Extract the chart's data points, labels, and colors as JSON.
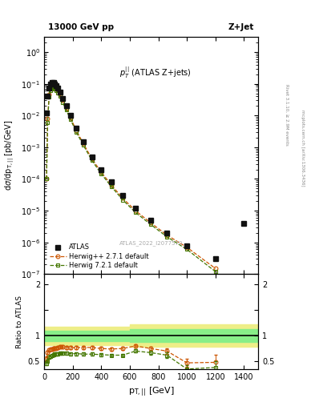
{
  "title_left": "13000 GeV pp",
  "title_right": "Z+Jet",
  "annotation": "$p_{T}^{||}$ (ATLAS Z+jets)",
  "watermark": "ATLAS_2022_I2077570",
  "right_label1": "Rivet 3.1.10, ≥ 2.9M events",
  "right_label2": "mcplots.cern.ch [arXiv:1306.3436]",
  "ylim_main": [
    1e-07,
    3.0
  ],
  "ylim_ratio": [
    0.35,
    2.2
  ],
  "xlim": [
    0,
    1500
  ],
  "atlas_x": [
    17,
    25,
    35,
    45,
    55,
    65,
    75,
    85,
    95,
    110,
    130,
    155,
    185,
    225,
    275,
    335,
    400,
    470,
    550,
    640,
    745,
    860,
    1000,
    1200,
    1400
  ],
  "atlas_y": [
    0.012,
    0.04,
    0.075,
    0.1,
    0.11,
    0.11,
    0.1,
    0.088,
    0.075,
    0.055,
    0.035,
    0.02,
    0.01,
    0.004,
    0.0015,
    0.0005,
    0.0002,
    8e-05,
    3e-05,
    1.2e-05,
    5e-06,
    2e-06,
    8e-07,
    3e-07,
    4e-06
  ],
  "herwig271_x": [
    17,
    25,
    35,
    45,
    55,
    65,
    75,
    85,
    95,
    110,
    130,
    155,
    185,
    225,
    275,
    335,
    400,
    470,
    550,
    640,
    745,
    860,
    1000,
    1200
  ],
  "herwig271_y": [
    0.0001,
    0.008,
    0.045,
    0.075,
    0.088,
    0.09,
    0.085,
    0.075,
    0.063,
    0.047,
    0.03,
    0.017,
    0.0085,
    0.0034,
    0.0013,
    0.00043,
    0.000165,
    6.5e-05,
    2.5e-05,
    1e-05,
    4.2e-06,
    1.7e-06,
    7e-07,
    1.5e-07
  ],
  "herwig721_x": [
    17,
    25,
    35,
    45,
    55,
    65,
    75,
    85,
    95,
    110,
    130,
    155,
    185,
    225,
    275,
    335,
    400,
    470,
    550,
    640,
    745,
    860,
    1000,
    1200
  ],
  "herwig721_y": [
    0.0001,
    0.006,
    0.038,
    0.062,
    0.073,
    0.075,
    0.07,
    0.062,
    0.053,
    0.04,
    0.026,
    0.0148,
    0.0075,
    0.003,
    0.00115,
    0.00038,
    0.000145,
    5.8e-05,
    2.2e-05,
    8.8e-06,
    3.7e-06,
    1.5e-06,
    6e-07,
    1.2e-07
  ],
  "ratio_herwig271_x": [
    17,
    25,
    35,
    45,
    55,
    65,
    75,
    85,
    95,
    110,
    130,
    155,
    185,
    225,
    275,
    335,
    400,
    470,
    550,
    640,
    745,
    860,
    1000,
    1200
  ],
  "ratio_herwig271_y": [
    0.55,
    0.68,
    0.72,
    0.73,
    0.74,
    0.75,
    0.76,
    0.76,
    0.77,
    0.78,
    0.78,
    0.77,
    0.77,
    0.77,
    0.77,
    0.77,
    0.75,
    0.74,
    0.75,
    0.8,
    0.75,
    0.7,
    0.47,
    0.48
  ],
  "ratio_herwig271_yerr": [
    0.04,
    0.03,
    0.03,
    0.03,
    0.03,
    0.03,
    0.03,
    0.03,
    0.03,
    0.03,
    0.03,
    0.03,
    0.03,
    0.03,
    0.03,
    0.03,
    0.03,
    0.03,
    0.03,
    0.03,
    0.04,
    0.05,
    0.08,
    0.15
  ],
  "ratio_herwig721_x": [
    17,
    25,
    35,
    45,
    55,
    65,
    75,
    85,
    95,
    110,
    130,
    155,
    185,
    225,
    275,
    335,
    400,
    470,
    550,
    640,
    745,
    860,
    1000,
    1200
  ],
  "ratio_herwig721_y": [
    0.46,
    0.5,
    0.58,
    0.6,
    0.62,
    0.63,
    0.64,
    0.64,
    0.65,
    0.66,
    0.66,
    0.66,
    0.65,
    0.65,
    0.64,
    0.64,
    0.63,
    0.62,
    0.62,
    0.7,
    0.67,
    0.62,
    0.35,
    0.38
  ],
  "ratio_herwig721_yerr": [
    0.04,
    0.03,
    0.03,
    0.03,
    0.03,
    0.03,
    0.03,
    0.03,
    0.03,
    0.03,
    0.03,
    0.03,
    0.03,
    0.03,
    0.03,
    0.03,
    0.03,
    0.03,
    0.03,
    0.03,
    0.04,
    0.05,
    0.07,
    0.12
  ],
  "color_atlas": "#111111",
  "color_herwig271": "#cc5500",
  "color_herwig721": "#447700",
  "color_band_yellow": "#eeee88",
  "color_band_green": "#88ee88"
}
